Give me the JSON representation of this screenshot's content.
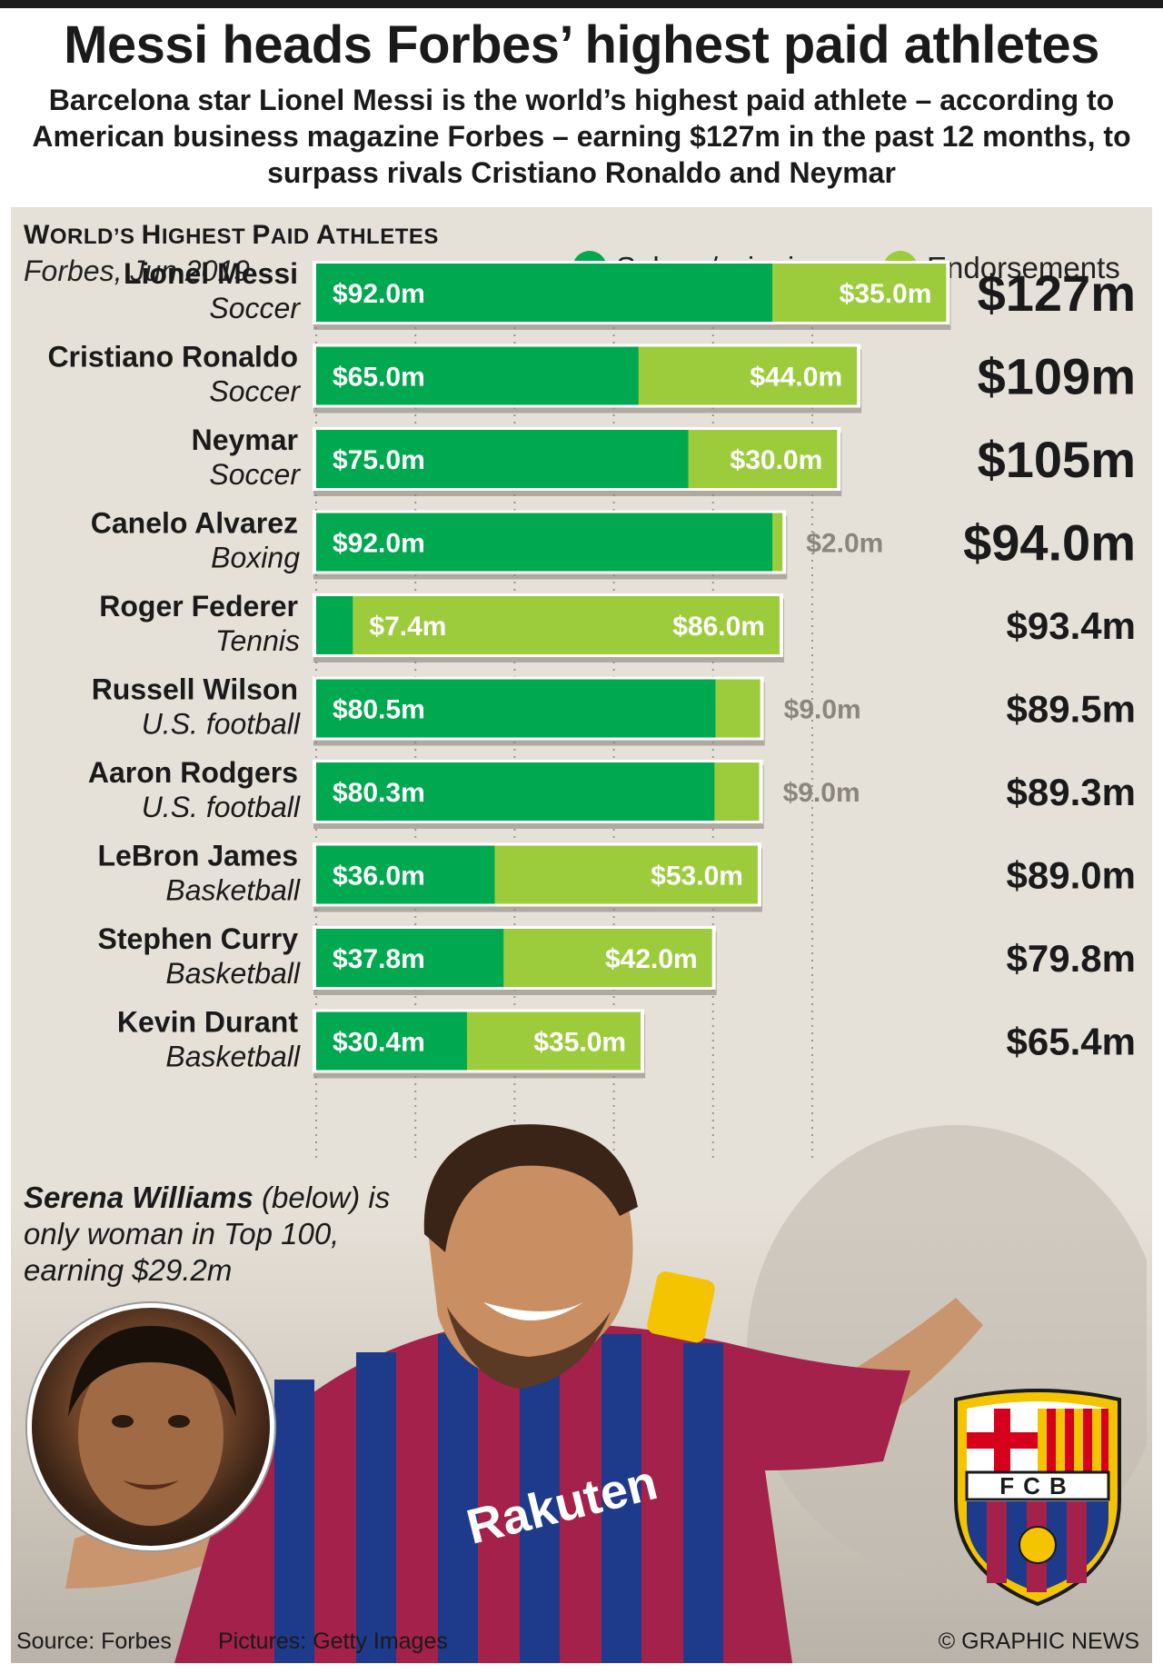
{
  "headline": "Messi heads Forbes’ highest paid athletes",
  "subhead": "Barcelona star Lionel Messi is the world’s highest paid athlete – according to American business magazine Forbes – earning $127m in the past 12 months, to surpass rivals Cristiano Ronaldo and Neymar",
  "colors": {
    "salary": "#00a84f",
    "endorsements": "#9ccc3c",
    "panel": "#e6e1d8"
  },
  "chart_data": {
    "type": "bar",
    "title_main": "WORLD’S HIGHEST PAID ATHLETES",
    "title_w": "W",
    "title_orlds": "ORLD’S ",
    "title_h": "H",
    "title_ighest": "IGHEST ",
    "title_p": "P",
    "title_aid": "AID ",
    "title_a": "A",
    "title_thletes": "THLETES",
    "source": "Forbes, Jun 2019",
    "legend": [
      {
        "label": "Salary / winnings",
        "color": "#00a84f"
      },
      {
        "label": "Endorsements",
        "color": "#9ccc3c"
      }
    ],
    "stacked": true,
    "orientation": "horizontal",
    "xlim": [
      0,
      127
    ],
    "grid": true,
    "series": [
      {
        "name": "Salary / winnings",
        "values": [
          92.0,
          65.0,
          75.0,
          92.0,
          7.4,
          80.5,
          80.3,
          36.0,
          37.8,
          30.4
        ]
      },
      {
        "name": "Endorsements",
        "values": [
          35.0,
          44.0,
          30.0,
          2.0,
          86.0,
          9.0,
          9.0,
          53.0,
          42.0,
          35.0
        ]
      }
    ],
    "athletes": [
      {
        "name": "Lionel Messi",
        "sport": "Soccer",
        "salary_label": "$92.0m",
        "endorse_label": "$35.0m",
        "total": "$127m"
      },
      {
        "name": "Cristiano Ronaldo",
        "sport": "Soccer",
        "salary_label": "$65.0m",
        "endorse_label": "$44.0m",
        "total": "$109m"
      },
      {
        "name": "Neymar",
        "sport": "Soccer",
        "salary_label": "$75.0m",
        "endorse_label": "$30.0m",
        "total": "$105m"
      },
      {
        "name": "Canelo Alvarez",
        "sport": "Boxing",
        "salary_label": "$92.0m",
        "endorse_label": "$2.0m",
        "total": "$94.0m"
      },
      {
        "name": "Roger Federer",
        "sport": "Tennis",
        "salary_label": "$7.4m",
        "endorse_label": "$86.0m",
        "total": "$93.4m"
      },
      {
        "name": "Russell Wilson",
        "sport": "U.S. football",
        "salary_label": "$80.5m",
        "endorse_label": "$9.0m",
        "total": "$89.5m"
      },
      {
        "name": "Aaron Rodgers",
        "sport": "U.S. football",
        "salary_label": "$80.3m",
        "endorse_label": "$9.0m",
        "total": "$89.3m"
      },
      {
        "name": "LeBron James",
        "sport": "Basketball",
        "salary_label": "$36.0m",
        "endorse_label": "$53.0m",
        "total": "$89.0m"
      },
      {
        "name": "Stephen Curry",
        "sport": "Basketball",
        "salary_label": "$37.8m",
        "endorse_label": "$42.0m",
        "total": "$79.8m"
      },
      {
        "name": "Kevin Durant",
        "sport": "Basketball",
        "salary_label": "$30.4m",
        "endorse_label": "$35.0m",
        "total": "$65.4m"
      }
    ]
  },
  "serena": {
    "name": "Serena Williams",
    "note": " (below) is only woman in Top 100, earning $29.2m"
  },
  "crest_text": "FCB",
  "jersey_text": "Rakuten",
  "footer": {
    "source": "Source: Forbes",
    "pictures": "Pictures: Getty Images",
    "credit": "© GRAPHIC NEWS"
  }
}
